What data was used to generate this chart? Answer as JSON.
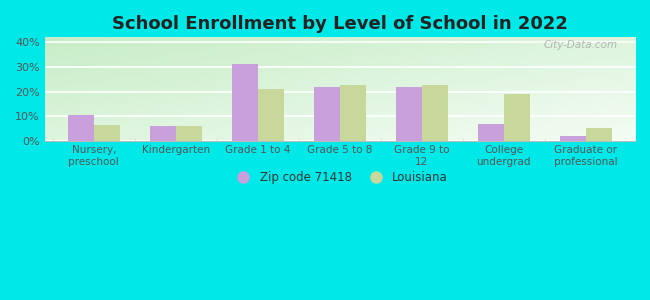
{
  "title": "School Enrollment by Level of School in 2022",
  "categories": [
    "Nursery,\npreschool",
    "Kindergarten",
    "Grade 1 to 4",
    "Grade 5 to 8",
    "Grade 9 to\n12",
    "College\nundergrad",
    "Graduate or\nprofessional"
  ],
  "zip_values": [
    10.5,
    6.0,
    31.0,
    22.0,
    22.0,
    7.0,
    2.0
  ],
  "la_values": [
    6.5,
    6.0,
    21.0,
    22.5,
    22.5,
    19.0,
    5.0
  ],
  "zip_color": "#c9a0dc",
  "la_color": "#c8d89a",
  "background_outer": "#00e8e8",
  "background_inner_topleft": "#c8e8c8",
  "background_inner_bottomright": "#f0f8f0",
  "ylim": [
    0,
    42
  ],
  "yticks": [
    0,
    10,
    20,
    30,
    40
  ],
  "ytick_labels": [
    "0%",
    "10%",
    "20%",
    "30%",
    "40%"
  ],
  "bar_width": 0.32,
  "legend_zip": "Zip code 71418",
  "legend_la": "Louisiana",
  "watermark": "City-Data.com"
}
